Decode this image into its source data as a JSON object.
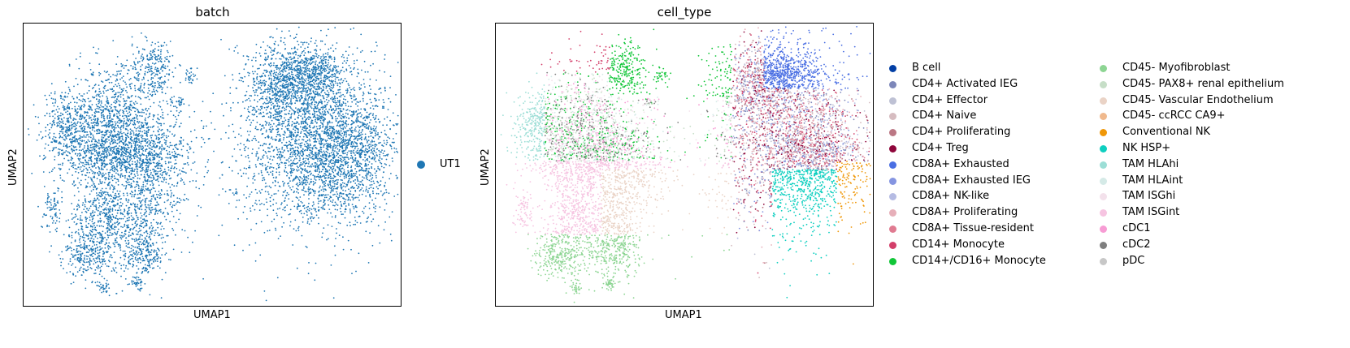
{
  "chart_data": [
    {
      "type": "scatter",
      "title": "batch",
      "xlabel": "UMAP1",
      "ylabel": "UMAP2",
      "grid": false,
      "legend_placement": "right",
      "series": [
        {
          "name": "UT1",
          "color": "#1f77b4"
        }
      ]
    },
    {
      "type": "scatter",
      "title": "cell_type",
      "xlabel": "UMAP1",
      "ylabel": "UMAP2",
      "grid": false,
      "legend_placement": "right (two columns)",
      "series": [
        {
          "name": "B cell",
          "color": "#023fa5"
        },
        {
          "name": "CD4+ Activated IEG",
          "color": "#7d87b9"
        },
        {
          "name": "CD4+ Effector",
          "color": "#bec1d4"
        },
        {
          "name": "CD4+ Naive",
          "color": "#d6bcc0"
        },
        {
          "name": "CD4+ Proliferating",
          "color": "#bb7784"
        },
        {
          "name": "CD4+ Treg",
          "color": "#8e063b"
        },
        {
          "name": "CD8A+ Exhausted",
          "color": "#4a6fe3"
        },
        {
          "name": "CD8A+ Exhausted IEG",
          "color": "#8595e1"
        },
        {
          "name": "CD8A+ NK-like",
          "color": "#b5bbe3"
        },
        {
          "name": "CD8A+ Proliferating",
          "color": "#e6afb9"
        },
        {
          "name": "CD8A+ Tissue-resident",
          "color": "#e07b91"
        },
        {
          "name": "CD14+ Monocyte",
          "color": "#d33f6a"
        },
        {
          "name": "CD14+/CD16+ Monocyte",
          "color": "#11c638"
        },
        {
          "name": "CD45- Myofibroblast",
          "color": "#8dd593"
        },
        {
          "name": "CD45- PAX8+ renal epithelium",
          "color": "#c6dec7"
        },
        {
          "name": "CD45- Vascular Endothelium",
          "color": "#ead3c6"
        },
        {
          "name": "CD45- ccRCC CA9+",
          "color": "#f0b98d"
        },
        {
          "name": "Conventional NK",
          "color": "#ef9708"
        },
        {
          "name": "NK HSP+",
          "color": "#0fcfc0"
        },
        {
          "name": "TAM HLAhi",
          "color": "#9cded6"
        },
        {
          "name": "TAM HLAint",
          "color": "#d5eae7"
        },
        {
          "name": "TAM ISGhi",
          "color": "#f3e1eb"
        },
        {
          "name": "TAM ISGint",
          "color": "#f6c4e1"
        },
        {
          "name": "cDC1",
          "color": "#f79cd4"
        },
        {
          "name": "cDC2",
          "color": "#7f7f7f"
        },
        {
          "name": "pDC",
          "color": "#c7c7c7"
        }
      ]
    }
  ]
}
